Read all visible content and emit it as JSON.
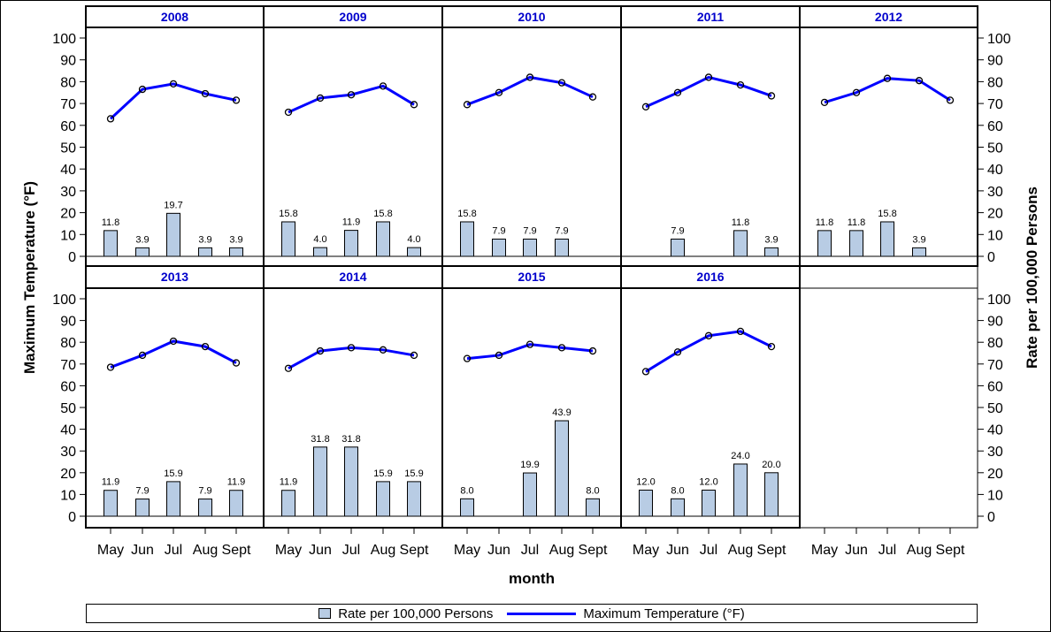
{
  "chart_data": {
    "type": "bar",
    "xlabel": "month",
    "ylabel_left": "Maximum Temperature (°F)",
    "ylabel_right": "Rate per 100,000 Persons",
    "ylim": [
      0,
      100
    ],
    "yticks": [
      0,
      10,
      20,
      30,
      40,
      50,
      60,
      70,
      80,
      90,
      100
    ],
    "categories": [
      "May",
      "Jun",
      "Jul",
      "Aug",
      "Sept"
    ],
    "series_names": {
      "bar": "Rate per 100,000 Persons",
      "line": "Maximum Temperature (°F)"
    },
    "panels": [
      {
        "year": "2008",
        "rate": [
          11.8,
          3.9,
          19.7,
          3.9,
          3.9
        ],
        "rate_labels": [
          "11.8",
          "3.9",
          "19.7",
          "3.9",
          "3.9"
        ],
        "temp": [
          63,
          76.5,
          79,
          74.5,
          71.5
        ]
      },
      {
        "year": "2009",
        "rate": [
          15.8,
          4.0,
          11.9,
          15.8,
          4.0
        ],
        "rate_labels": [
          "15.8",
          "4.0",
          "11.9",
          "15.8",
          "4.0"
        ],
        "temp": [
          66,
          72.5,
          74,
          78,
          69.5
        ]
      },
      {
        "year": "2010",
        "rate": [
          15.8,
          7.9,
          7.9,
          7.9,
          null
        ],
        "rate_labels": [
          "15.8",
          "7.9",
          "7.9",
          "7.9",
          ""
        ],
        "temp": [
          69.5,
          75,
          82,
          79.5,
          73
        ]
      },
      {
        "year": "2011",
        "rate": [
          null,
          7.9,
          null,
          11.8,
          3.9
        ],
        "rate_labels": [
          "",
          "7.9",
          "",
          "11.8",
          "3.9"
        ],
        "temp": [
          68.5,
          75,
          82,
          78.5,
          73.5
        ]
      },
      {
        "year": "2012",
        "rate": [
          11.8,
          11.8,
          15.8,
          3.9,
          null
        ],
        "rate_labels": [
          "11.8",
          "11.8",
          "15.8",
          "3.9",
          ""
        ],
        "temp": [
          70.5,
          75,
          81.5,
          80.5,
          71.5
        ]
      },
      {
        "year": "2013",
        "rate": [
          11.9,
          7.9,
          15.9,
          7.9,
          11.9
        ],
        "rate_labels": [
          "11.9",
          "7.9",
          "15.9",
          "7.9",
          "11.9"
        ],
        "temp": [
          68.5,
          74,
          80.5,
          78,
          70.5
        ]
      },
      {
        "year": "2014",
        "rate": [
          11.9,
          31.8,
          31.8,
          15.9,
          15.9
        ],
        "rate_labels": [
          "11.9",
          "31.8",
          "31.8",
          "15.9",
          "15.9"
        ],
        "temp": [
          68,
          76,
          77.5,
          76.5,
          74
        ]
      },
      {
        "year": "2015",
        "rate": [
          8.0,
          null,
          19.9,
          43.9,
          8.0
        ],
        "rate_labels": [
          "8.0",
          "",
          "19.9",
          "43.9",
          "8.0"
        ],
        "temp": [
          72.5,
          74,
          79,
          77.5,
          76
        ]
      },
      {
        "year": "2016",
        "rate": [
          12.0,
          8.0,
          12.0,
          24.0,
          20.0
        ],
        "rate_labels": [
          "12.0",
          "8.0",
          "12.0",
          "24.0",
          "20.0"
        ],
        "temp": [
          66.5,
          75.5,
          83,
          85,
          78
        ]
      }
    ],
    "colors": {
      "bar_fill": "#b8cce4",
      "bar_stroke": "#000000",
      "line": "#0000ff",
      "header_text": "#0000cc"
    },
    "legend_position": "bottom"
  }
}
